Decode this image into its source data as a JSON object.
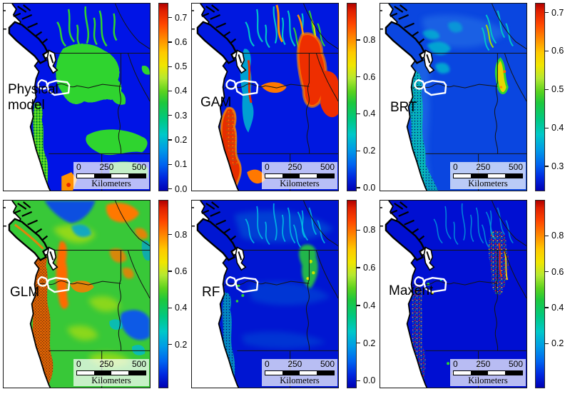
{
  "figure": {
    "type": "species-distribution-model-comparison-maps",
    "region": "Pacific Northwest",
    "scalebar": {
      "tick0": "0",
      "tick1": "250",
      "tick2": "500",
      "unit": "Kilometers"
    },
    "colormap": {
      "style": "jet",
      "low_color": "#0000b4",
      "mid_color": "#1ec83c",
      "high_color": "#b00000"
    },
    "panels": [
      {
        "id": "physical",
        "label": "Physical model",
        "colorbar": {
          "ticks": [
            "0.7",
            "0.6",
            "0.5",
            "0.4",
            "0.3",
            "0.2",
            "0.1",
            "0.0"
          ],
          "top_value": 0.76,
          "bottom_value": -0.01
        }
      },
      {
        "id": "gam",
        "label": "GAM",
        "colorbar": {
          "ticks": [
            "0.8",
            "0.6",
            "0.4",
            "0.2",
            "0.0"
          ],
          "top_value": 1.0,
          "bottom_value": -0.02
        }
      },
      {
        "id": "brt",
        "label": "BRT",
        "colorbar": {
          "ticks": [
            "0.7",
            "0.6",
            "0.5",
            "0.4",
            "0.3"
          ],
          "top_value": 0.725,
          "bottom_value": 0.235
        }
      },
      {
        "id": "glm",
        "label": "GLM",
        "colorbar": {
          "ticks": [
            "0.8",
            "0.6",
            "0.4",
            "0.2"
          ],
          "top_value": 0.99,
          "bottom_value": -0.04
        }
      },
      {
        "id": "rf",
        "label": "RF",
        "colorbar": {
          "ticks": [
            "0.8",
            "0.6",
            "0.4",
            "0.2",
            "0.0"
          ],
          "top_value": 0.96,
          "bottom_value": -0.04
        }
      },
      {
        "id": "maxent",
        "label": "Maxent",
        "colorbar": {
          "ticks": [
            "0.8",
            "0.6",
            "0.4",
            "0.2"
          ],
          "top_value": 1.0,
          "bottom_value": -0.05
        }
      }
    ]
  }
}
